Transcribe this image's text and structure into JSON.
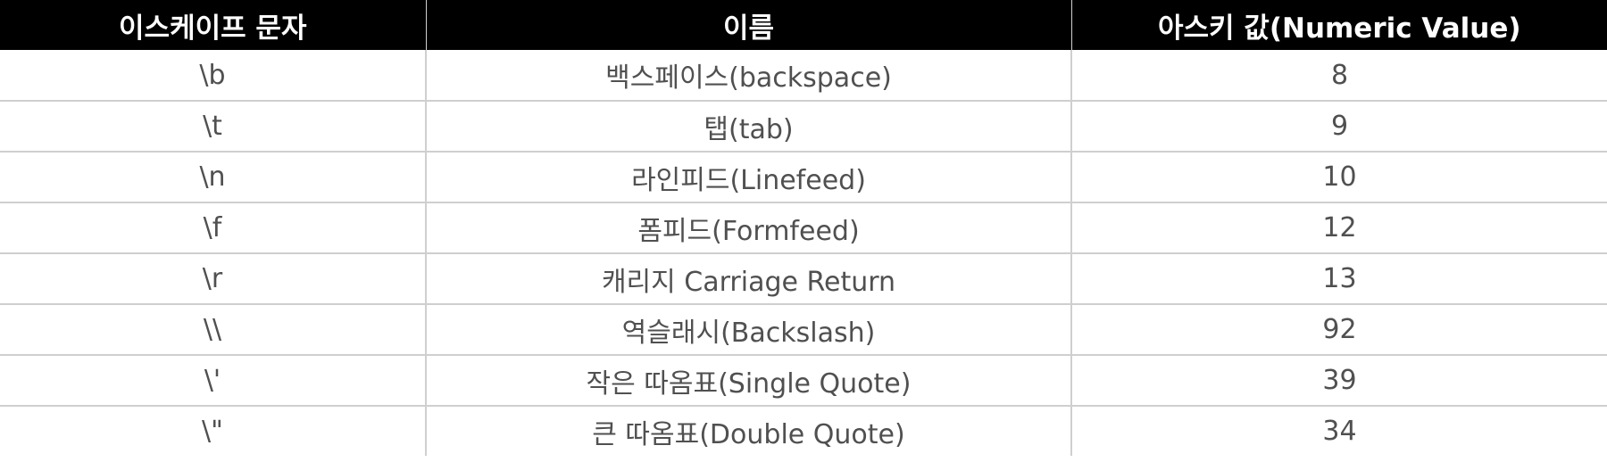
{
  "table": {
    "headers": [
      "이스케이프 문자",
      "이름",
      "아스키 값(Numeric Value)"
    ],
    "rows": [
      [
        "\\b",
        "백스페이스(backspace)",
        "8"
      ],
      [
        "\\t",
        "탭(tab)",
        "9"
      ],
      [
        "\\n",
        "라인피드(Linefeed)",
        "10"
      ],
      [
        "\\f",
        "폼피드(Formfeed)",
        "12"
      ],
      [
        "\\r",
        "캐리지 Carriage Return",
        "13"
      ],
      [
        "\\\\",
        "역슬래시(Backslash)",
        "92"
      ],
      [
        "\\'",
        "작은 따옴표(Single Quote)",
        "39"
      ],
      [
        "\\\"",
        "큰 따옴표(Double Quote)",
        "34"
      ]
    ]
  },
  "colors": {
    "header_background": "#000000",
    "header_text": "#ffffff",
    "cell_text": "#505050",
    "grid_line": "#cfcfcf"
  }
}
